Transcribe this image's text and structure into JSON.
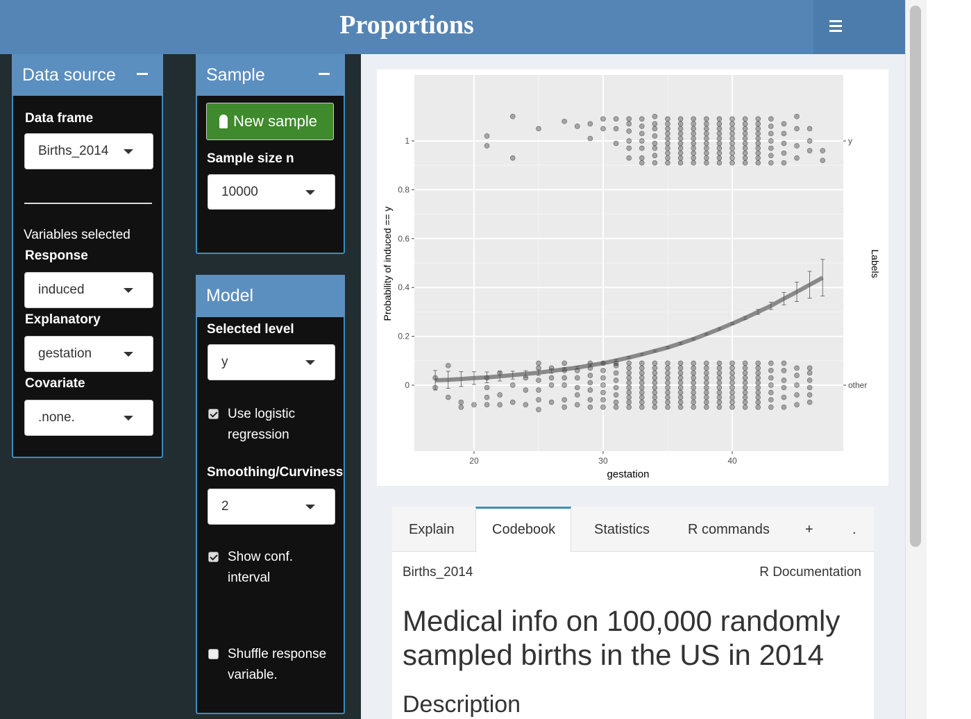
{
  "header": {
    "title": "Proportions"
  },
  "data_source": {
    "title": "Data source",
    "data_frame_label": "Data frame",
    "data_frame_value": "Births_2014",
    "variables_selected": "Variables selected",
    "response_label": "Response",
    "response_value": "induced",
    "explanatory_label": "Explanatory",
    "explanatory_value": "gestation",
    "covariate_label": "Covariate",
    "covariate_value": ".none."
  },
  "sample": {
    "title": "Sample",
    "button": "New sample",
    "size_label": "Sample size n",
    "size_value": "10000"
  },
  "model": {
    "title": "Model",
    "level_label": "Selected level",
    "level_value": "y",
    "logistic_label": "Use logistic regression",
    "smoothing_label": "Smoothing/Curviness",
    "smoothing_value": "2",
    "conf_label": "Show conf. interval",
    "shuffle_label": "Shuffle response variable."
  },
  "tabs": [
    "Explain",
    "Codebook",
    "Statistics",
    "R commands",
    "+",
    "."
  ],
  "doc": {
    "dataset": "Births_2014",
    "rdoc": "R Documentation",
    "heading": "Medical info on 100,000 randomly sampled births in the US in 2014",
    "section": "Description"
  },
  "chart_data": {
    "type": "logistic-scatter",
    "x_label": "gestation",
    "y_label": "Probability of induced == y",
    "y2_label": "Labels",
    "xlim": [
      15.38,
      48.6
    ],
    "ylim": [
      -0.27,
      1.27
    ],
    "xticks": [
      20,
      30,
      40
    ],
    "yticks": [
      0,
      0.2,
      0.4,
      0.6,
      0.8,
      1
    ],
    "y2ticks": [
      {
        "value": 1,
        "label": "y"
      },
      {
        "value": 0,
        "label": "other"
      }
    ],
    "grid": true,
    "point_color": "#000000",
    "fit_color": "#555555",
    "points": [
      {
        "x": 21,
        "y": [
          0.98,
          1.02
        ]
      },
      {
        "x": 23,
        "y": [
          0.93,
          1.1
        ]
      },
      {
        "x": 25,
        "y": [
          1.05
        ]
      },
      {
        "x": 27,
        "y": [
          1.08
        ]
      },
      {
        "x": 28,
        "y": [
          1.06
        ]
      },
      {
        "x": 29,
        "y": [
          1.01,
          1.07
        ]
      },
      {
        "x": 30,
        "y": [
          1.05,
          1.09
        ]
      },
      {
        "x": 31,
        "y": [
          0.99,
          1.05,
          1.09
        ]
      },
      {
        "x": 32,
        "y": [
          0.93,
          0.97,
          1.0,
          1.04,
          1.07,
          1.09
        ]
      },
      {
        "x": 33,
        "y": [
          0.91,
          0.93,
          0.97,
          1.0,
          1.03,
          1.06,
          1.09
        ]
      },
      {
        "x": 34,
        "y": [
          0.91,
          0.94,
          0.97,
          0.99,
          1.02,
          1.05,
          1.07,
          1.1
        ]
      },
      {
        "x": 35,
        "y": [
          0.91,
          0.93,
          0.95,
          0.97,
          0.99,
          1.01,
          1.03,
          1.05,
          1.07,
          1.09
        ]
      },
      {
        "x": 36,
        "y": [
          0.91,
          0.93,
          0.95,
          0.97,
          0.99,
          1.01,
          1.03,
          1.05,
          1.07,
          1.09
        ]
      },
      {
        "x": 37,
        "y": [
          0.91,
          0.93,
          0.95,
          0.97,
          0.99,
          1.01,
          1.03,
          1.05,
          1.07,
          1.09
        ]
      },
      {
        "x": 38,
        "y": [
          0.91,
          0.93,
          0.95,
          0.97,
          0.99,
          1.01,
          1.03,
          1.05,
          1.07,
          1.09
        ]
      },
      {
        "x": 39,
        "y": [
          0.91,
          0.93,
          0.95,
          0.97,
          0.99,
          1.01,
          1.03,
          1.05,
          1.07,
          1.09
        ]
      },
      {
        "x": 40,
        "y": [
          0.91,
          0.93,
          0.95,
          0.97,
          0.99,
          1.01,
          1.03,
          1.05,
          1.07,
          1.09
        ]
      },
      {
        "x": 41,
        "y": [
          0.91,
          0.93,
          0.95,
          0.97,
          0.99,
          1.01,
          1.03,
          1.05,
          1.07,
          1.09
        ]
      },
      {
        "x": 42,
        "y": [
          0.91,
          0.93,
          0.95,
          0.97,
          0.99,
          1.01,
          1.03,
          1.05,
          1.07,
          1.09
        ]
      },
      {
        "x": 43,
        "y": [
          0.91,
          0.94,
          0.97,
          1.0,
          1.03,
          1.06,
          1.09
        ]
      },
      {
        "x": 44,
        "y": [
          0.91,
          0.95,
          0.99,
          1.03,
          1.07
        ]
      },
      {
        "x": 45,
        "y": [
          0.93,
          0.98,
          1.05,
          1.1
        ]
      },
      {
        "x": 46,
        "y": [
          0.96,
          1.0,
          1.05
        ]
      },
      {
        "x": 47,
        "y": [
          0.92,
          0.96
        ]
      },
      {
        "x": 17,
        "y": [
          -0.01,
          0.03
        ]
      },
      {
        "x": 18,
        "y": [
          -0.05,
          0.08
        ]
      },
      {
        "x": 19,
        "y": [
          -0.09,
          -0.07
        ]
      },
      {
        "x": 20,
        "y": [
          -0.08
        ]
      },
      {
        "x": 21,
        "y": [
          -0.08,
          -0.05,
          -0.01,
          0.03
        ]
      },
      {
        "x": 22,
        "y": [
          -0.08,
          -0.04,
          0.05
        ]
      },
      {
        "x": 23,
        "y": [
          -0.07,
          0.0
        ]
      },
      {
        "x": 24,
        "y": [
          -0.08,
          -0.02,
          0.03
        ]
      },
      {
        "x": 25,
        "y": [
          -0.1,
          -0.06,
          -0.02,
          0.02,
          0.07,
          0.09
        ]
      },
      {
        "x": 26,
        "y": [
          -0.07,
          0.0,
          0.03,
          0.07
        ]
      },
      {
        "x": 27,
        "y": [
          -0.09,
          -0.06,
          0.0,
          0.03,
          0.06,
          0.09
        ]
      },
      {
        "x": 28,
        "y": [
          -0.08,
          -0.04,
          -0.01,
          0.03,
          0.06
        ]
      },
      {
        "x": 29,
        "y": [
          -0.09,
          -0.06,
          -0.02,
          0.01,
          0.04,
          0.07,
          0.09
        ]
      },
      {
        "x": 30,
        "y": [
          -0.09,
          -0.06,
          -0.03,
          0.0,
          0.03,
          0.06,
          0.09
        ]
      },
      {
        "x": 31,
        "y": [
          -0.09,
          -0.07,
          -0.04,
          -0.01,
          0.02,
          0.05,
          0.08,
          0.09
        ]
      },
      {
        "x": 32,
        "y": [
          -0.09,
          -0.07,
          -0.05,
          -0.03,
          -0.01,
          0.01,
          0.03,
          0.05,
          0.07,
          0.09
        ]
      },
      {
        "x": 33,
        "y": [
          -0.09,
          -0.07,
          -0.05,
          -0.03,
          -0.01,
          0.01,
          0.03,
          0.05,
          0.07,
          0.09
        ]
      },
      {
        "x": 34,
        "y": [
          -0.09,
          -0.07,
          -0.05,
          -0.03,
          -0.01,
          0.01,
          0.03,
          0.05,
          0.07,
          0.09
        ]
      },
      {
        "x": 35,
        "y": [
          -0.09,
          -0.07,
          -0.05,
          -0.03,
          -0.01,
          0.01,
          0.03,
          0.05,
          0.07,
          0.09
        ]
      },
      {
        "x": 36,
        "y": [
          -0.09,
          -0.07,
          -0.05,
          -0.03,
          -0.01,
          0.01,
          0.03,
          0.05,
          0.07,
          0.09
        ]
      },
      {
        "x": 37,
        "y": [
          -0.09,
          -0.07,
          -0.05,
          -0.03,
          -0.01,
          0.01,
          0.03,
          0.05,
          0.07,
          0.09
        ]
      },
      {
        "x": 38,
        "y": [
          -0.09,
          -0.07,
          -0.05,
          -0.03,
          -0.01,
          0.01,
          0.03,
          0.05,
          0.07,
          0.09
        ]
      },
      {
        "x": 39,
        "y": [
          -0.09,
          -0.07,
          -0.05,
          -0.03,
          -0.01,
          0.01,
          0.03,
          0.05,
          0.07,
          0.09
        ]
      },
      {
        "x": 40,
        "y": [
          -0.09,
          -0.07,
          -0.05,
          -0.03,
          -0.01,
          0.01,
          0.03,
          0.05,
          0.07,
          0.09
        ]
      },
      {
        "x": 41,
        "y": [
          -0.09,
          -0.07,
          -0.05,
          -0.03,
          -0.01,
          0.01,
          0.03,
          0.05,
          0.07,
          0.09
        ]
      },
      {
        "x": 42,
        "y": [
          -0.09,
          -0.07,
          -0.05,
          -0.03,
          -0.01,
          0.01,
          0.03,
          0.05,
          0.07,
          0.09
        ]
      },
      {
        "x": 43,
        "y": [
          -0.09,
          -0.06,
          -0.03,
          0.0,
          0.03,
          0.06,
          0.09
        ]
      },
      {
        "x": 44,
        "y": [
          -0.09,
          -0.05,
          -0.01,
          0.02,
          0.06,
          0.09
        ]
      },
      {
        "x": 45,
        "y": [
          -0.08,
          -0.04,
          0.0,
          0.04,
          0.07
        ]
      },
      {
        "x": 46,
        "y": [
          -0.07,
          -0.04,
          -0.01,
          0.02,
          0.05,
          0.07
        ]
      }
    ],
    "fit": {
      "x": [
        17,
        18,
        19,
        20,
        21,
        22,
        23,
        24,
        25,
        26,
        27,
        28,
        29,
        30,
        31,
        32,
        33,
        34,
        35,
        36,
        37,
        38,
        39,
        40,
        41,
        42,
        43,
        44,
        45,
        46,
        47
      ],
      "y": [
        0.02,
        0.022,
        0.025,
        0.029,
        0.032,
        0.036,
        0.041,
        0.046,
        0.051,
        0.058,
        0.065,
        0.072,
        0.081,
        0.09,
        0.101,
        0.113,
        0.126,
        0.14,
        0.154,
        0.171,
        0.189,
        0.209,
        0.23,
        0.252,
        0.275,
        0.3,
        0.325,
        0.354,
        0.382,
        0.411,
        0.44
      ],
      "ci": [
        0.04,
        0.035,
        0.03,
        0.026,
        0.022,
        0.019,
        0.016,
        0.013,
        0.011,
        0.009,
        0.007,
        0.006,
        0.005,
        0.004,
        0.004,
        0.004,
        0.004,
        0.004,
        0.004,
        0.004,
        0.004,
        0.004,
        0.004,
        0.004,
        0.006,
        0.01,
        0.015,
        0.025,
        0.04,
        0.055,
        0.075
      ]
    }
  }
}
